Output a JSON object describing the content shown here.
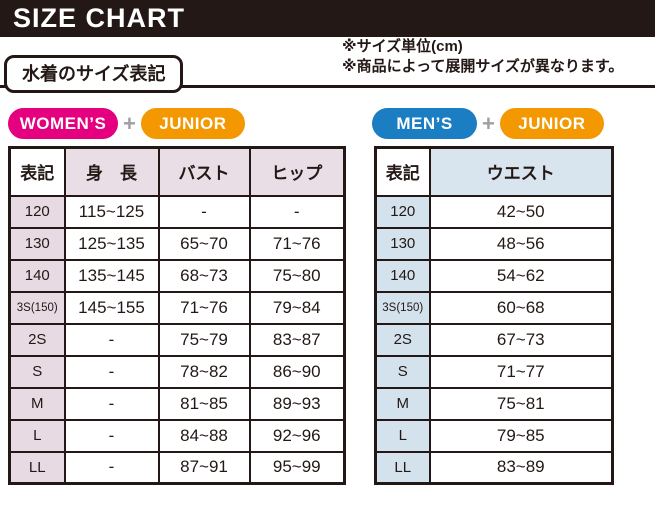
{
  "header": {
    "title": "SIZE CHART"
  },
  "notes": {
    "line1": "※サイズ単位(cm)",
    "line2": "※商品によって展開サイズが異なります。"
  },
  "section": {
    "label": "水着のサイズ表記"
  },
  "colors": {
    "banner": "#231815",
    "womens_badge": "#E4007F",
    "mens_badge": "#1B7EC2",
    "junior_badge": "#F39800",
    "plus_sign": "#9E9FA0",
    "womens_accent": "#E7DAE2",
    "mens_accent": "#D3E2ED"
  },
  "womens": {
    "badge_primary": "WOMEN’S",
    "badge_plus": "+",
    "badge_secondary": "JUNIOR",
    "table": {
      "headers": [
        "表記",
        "身　長",
        "バスト",
        "ヒップ"
      ],
      "rows": [
        [
          "120",
          "115~125",
          "-",
          "-"
        ],
        [
          "130",
          "125~135",
          "65~70",
          "71~76"
        ],
        [
          "140",
          "135~145",
          "68~73",
          "75~80"
        ],
        [
          "3S(150)",
          "145~155",
          "71~76",
          "79~84"
        ],
        [
          "2S",
          "-",
          "75~79",
          "83~87"
        ],
        [
          "S",
          "-",
          "78~82",
          "86~90"
        ],
        [
          "M",
          "-",
          "81~85",
          "89~93"
        ],
        [
          "L",
          "-",
          "84~88",
          "92~96"
        ],
        [
          "LL",
          "-",
          "87~91",
          "95~99"
        ]
      ]
    }
  },
  "mens": {
    "badge_primary": "MEN’S",
    "badge_plus": "+",
    "badge_secondary": "JUNIOR",
    "table": {
      "headers": [
        "表記",
        "ウエスト"
      ],
      "rows": [
        [
          "120",
          "42~50"
        ],
        [
          "130",
          "48~56"
        ],
        [
          "140",
          "54~62"
        ],
        [
          "3S(150)",
          "60~68"
        ],
        [
          "2S",
          "67~73"
        ],
        [
          "S",
          "71~77"
        ],
        [
          "M",
          "75~81"
        ],
        [
          "L",
          "79~85"
        ],
        [
          "LL",
          "83~89"
        ]
      ]
    }
  }
}
